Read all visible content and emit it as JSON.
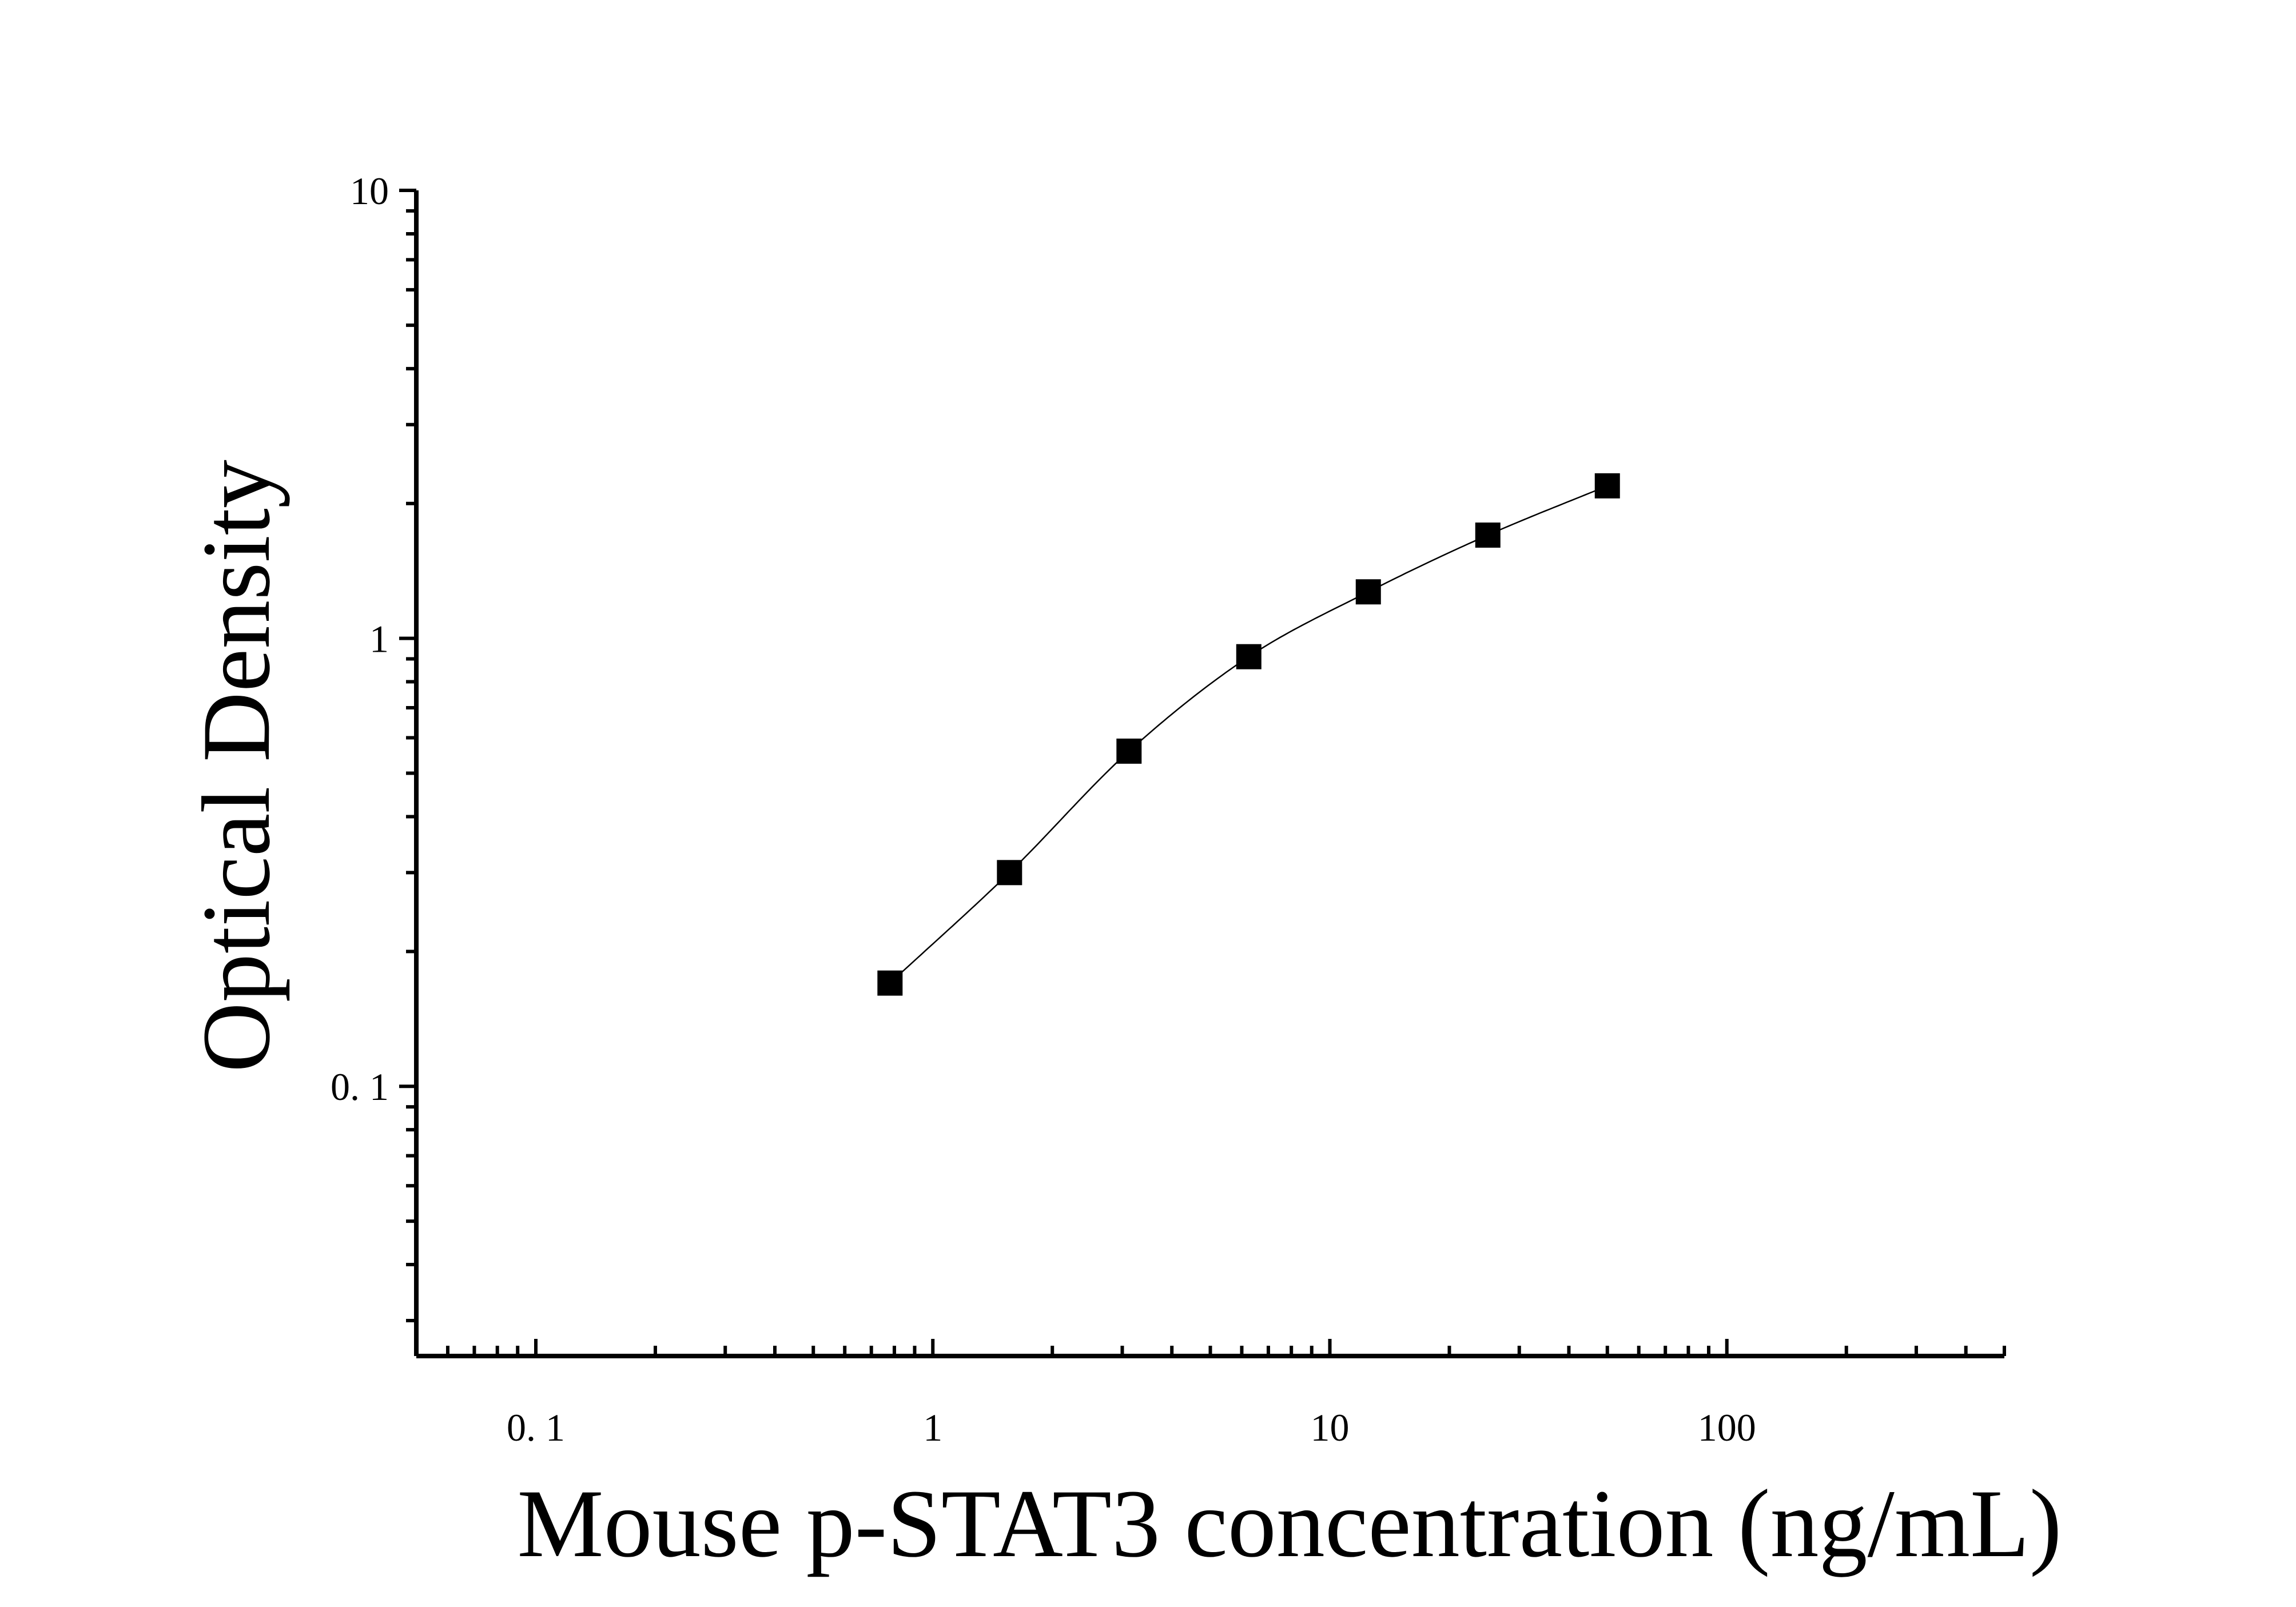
{
  "chart_data": {
    "type": "scatter",
    "x_scale": "log",
    "y_scale": "log",
    "xlabel": "Mouse p-STAT3 concentration (ng/mL)",
    "ylabel": "Optical Density",
    "xlim": [
      0.05,
      500
    ],
    "ylim": [
      0.025,
      10
    ],
    "x_ticks": [
      {
        "value": 0.1,
        "label": "0. 1"
      },
      {
        "value": 1,
        "label": "1"
      },
      {
        "value": 10,
        "label": "10"
      },
      {
        "value": 100,
        "label": "100"
      }
    ],
    "y_ticks": [
      {
        "value": 0.1,
        "label": "0. 1"
      },
      {
        "value": 1,
        "label": "1"
      },
      {
        "value": 10,
        "label": "10"
      }
    ],
    "grid": false,
    "series": [
      {
        "marker": "square",
        "color": "#000000",
        "points": [
          {
            "x": 0.78,
            "y": 0.17
          },
          {
            "x": 1.56,
            "y": 0.3
          },
          {
            "x": 3.12,
            "y": 0.56
          },
          {
            "x": 6.25,
            "y": 0.91
          },
          {
            "x": 12.5,
            "y": 1.27
          },
          {
            "x": 25,
            "y": 1.7
          },
          {
            "x": 50,
            "y": 2.19
          }
        ]
      }
    ],
    "fit_curve": {
      "type": "smooth",
      "x_range": [
        0.78,
        50
      ]
    }
  }
}
